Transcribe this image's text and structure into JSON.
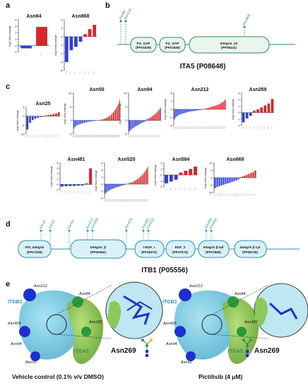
{
  "panels": {
    "a": "a",
    "b": "b",
    "c": "c",
    "d": "d",
    "e": "e"
  },
  "ylabel": "log2 fold-change",
  "chart_data": [
    {
      "type": "bar",
      "title": "Asn84",
      "ylim": [
        -1,
        4
      ],
      "yticks": [
        -1,
        0,
        1,
        2,
        3,
        4
      ],
      "values": [
        -0.4,
        2.9
      ]
    },
    {
      "type": "bar",
      "title": "Asn868",
      "ylim": [
        -4,
        2
      ],
      "yticks": [
        -4,
        -3,
        -2,
        -1,
        0,
        1,
        2
      ],
      "values": [
        -3.0,
        -1.6,
        -1.2,
        -0.6,
        0.3,
        0.9,
        1.4
      ]
    },
    {
      "type": "bar",
      "title": "Asn25",
      "ylim": [
        -10,
        5
      ],
      "yticks": [
        -10,
        -5,
        0,
        5
      ],
      "values": [
        -7.5,
        -3.8,
        -2.2,
        -1.4,
        -0.9,
        -0.5,
        -0.3,
        0.3,
        0.6,
        0.9,
        1.2,
        1.6,
        2.2
      ]
    },
    {
      "type": "bar",
      "title": "Asn50",
      "ylim": [
        -5,
        10
      ],
      "yticks": [
        -5,
        0,
        5,
        10
      ],
      "values": [
        -3.0,
        -2.4,
        -2.0,
        -1.8,
        -1.6,
        -1.5,
        -1.3,
        -1.2,
        -1.1,
        -1.0,
        -0.9,
        -0.8,
        -0.7,
        -0.6,
        -0.5,
        -0.45,
        -0.4,
        -0.35,
        -0.3,
        -0.25,
        -0.2,
        -0.15,
        -0.1,
        -0.05,
        0.05,
        0.1,
        0.2,
        0.3,
        0.4,
        0.5,
        0.7,
        0.9,
        1.1,
        1.3,
        1.5,
        1.8,
        2.1,
        2.5,
        3.0,
        3.5,
        4.0,
        4.6,
        5.3,
        6.2,
        7.5
      ]
    },
    {
      "type": "bar",
      "title": "Asn94",
      "ylim": [
        -5,
        10
      ],
      "yticks": [
        -5,
        0,
        5,
        10
      ],
      "values": [
        -4.0,
        -3.5,
        -3.0,
        -2.6,
        -2.2,
        -1.9,
        -1.6,
        -1.3,
        -1.0,
        -0.7,
        -0.5,
        0.3,
        0.6,
        0.9,
        1.2,
        1.6,
        2.0,
        2.5,
        3.1,
        3.8,
        4.5
      ]
    },
    {
      "type": "bar",
      "title": "Asn212",
      "ylim": [
        -4,
        4
      ],
      "yticks": [
        -4,
        -2,
        0,
        2,
        4
      ],
      "values": [
        -2.5,
        -2.0,
        -1.7,
        -1.5,
        -1.3,
        -1.2,
        -1.1,
        -1.0,
        -0.9,
        -0.8,
        -0.7,
        -0.6,
        -0.55,
        -0.5,
        -0.45,
        -0.4,
        -0.35,
        -0.3,
        -0.25,
        -0.2,
        -0.15,
        -0.1,
        0.1,
        0.15,
        0.2,
        0.3,
        0.4,
        0.5,
        0.6,
        0.7,
        0.8,
        0.9,
        1.0,
        1.1,
        1.2,
        1.4,
        1.6,
        1.8,
        2.1,
        2.4
      ]
    },
    {
      "type": "bar",
      "title": "Asn269",
      "ylim": [
        -2,
        3
      ],
      "yticks": [
        -2,
        -1,
        0,
        1,
        2,
        3
      ],
      "values": [
        -1.5,
        -0.9,
        -0.5,
        0.3,
        0.5,
        0.8,
        1.1,
        1.4,
        2.1
      ]
    },
    {
      "type": "bar",
      "title": "Asn481",
      "ylim": [
        -1,
        4
      ],
      "yticks": [
        -1,
        0,
        1,
        2,
        3,
        4
      ],
      "values": [
        -0.4,
        -0.35,
        -0.3,
        -0.3,
        -0.25,
        -0.2,
        0.2,
        3.0
      ]
    },
    {
      "type": "bar",
      "title": "Asn520",
      "ylim": [
        -4,
        6
      ],
      "yticks": [
        -4,
        -2,
        0,
        2,
        4,
        6
      ],
      "values": [
        -2.8,
        -2.4,
        -2.1,
        -1.9,
        -1.7,
        -1.5,
        -1.4,
        -1.3,
        -1.1,
        -1.0,
        -0.9,
        -0.8,
        -0.7,
        -0.6,
        -0.5,
        -0.4,
        -0.3,
        -0.2,
        -0.1,
        0.1,
        0.2,
        0.3,
        0.4,
        0.5,
        0.6,
        0.8,
        1.0,
        1.2,
        1.4,
        1.6,
        1.9,
        2.2,
        2.5,
        2.9,
        3.3,
        3.8,
        4.3,
        4.9
      ]
    },
    {
      "type": "bar",
      "title": "Asn584",
      "ylim": [
        -2,
        2
      ],
      "yticks": [
        -2,
        -1,
        0,
        1,
        2
      ],
      "values": [
        -1.4,
        -1.1,
        -0.8,
        0.4,
        0.7,
        1.0,
        1.4
      ]
    },
    {
      "type": "bar",
      "title": "Asn669",
      "ylim": [
        -10,
        10
      ],
      "yticks": [
        -10,
        -5,
        0,
        5,
        10
      ],
      "values": [
        -7.0,
        -6.3,
        -5.7,
        -5.2,
        -4.7,
        -4.2,
        -3.8,
        -3.3,
        -2.8,
        -2.3,
        -1.8,
        -1.2,
        0.5,
        1.0,
        1.5,
        2.0,
        2.6,
        3.3,
        4.0,
        5.0
      ]
    }
  ],
  "ita5": {
    "name": "ITA5 (P08648)",
    "sites": [
      "Asn84",
      "Asn102",
      "Asn868"
    ],
    "domains": [
      {
        "name": "FG_GAP",
        "id": "(PF01839)"
      },
      {
        "name": "FG_GAP",
        "id": "(PF01839)"
      },
      {
        "name": "Integrin_α2",
        "id": "(PF08441)"
      }
    ]
  },
  "itb1": {
    "name": "ITB1 (P05556)",
    "sites": [
      "Asn25",
      "Asn50",
      "Asn94",
      "Asn212",
      "Asn269",
      "Asn406",
      "Asn481",
      "Asn520",
      "Asn584",
      "Asn669"
    ],
    "domains": [
      {
        "name": "PSI_Integrin",
        "id": "(PF17205)"
      },
      {
        "name": "Integrin_β",
        "id": "(PF00362)"
      },
      {
        "name": "I-EGF_I",
        "id": "(PF18372)"
      },
      {
        "name": "EGF_2",
        "id": "(PF07974)"
      },
      {
        "name": "Integrin β tail",
        "id": "(PF07965)"
      },
      {
        "name": "Integrin β cyt",
        "id": "(PF08725)"
      }
    ]
  },
  "structure": {
    "left": {
      "caption": "Vehicle control (0.1% v/v DMSO)",
      "site": "Asn269",
      "labels": [
        "Asn212",
        "Asn84",
        "ITGB1",
        "Asn406",
        "Asn182",
        "Asn94",
        "ITGA5",
        "Asn50"
      ]
    },
    "right": {
      "caption": "Pictilisib (4 μM)",
      "site": "Asn269",
      "labels": [
        "Asn212",
        "Asn84",
        "ITGB1",
        "Asn406",
        "Asn182",
        "Asn94",
        "ITGA5",
        "Asn50"
      ]
    }
  },
  "colors": {
    "neg": "#2f3fd6",
    "pos": "#d7262c",
    "ita": "#2e8b57",
    "itb": "#2a8fb0",
    "domain_fill": "#e8f7ee",
    "itb_fill": "#d9f1f7"
  }
}
